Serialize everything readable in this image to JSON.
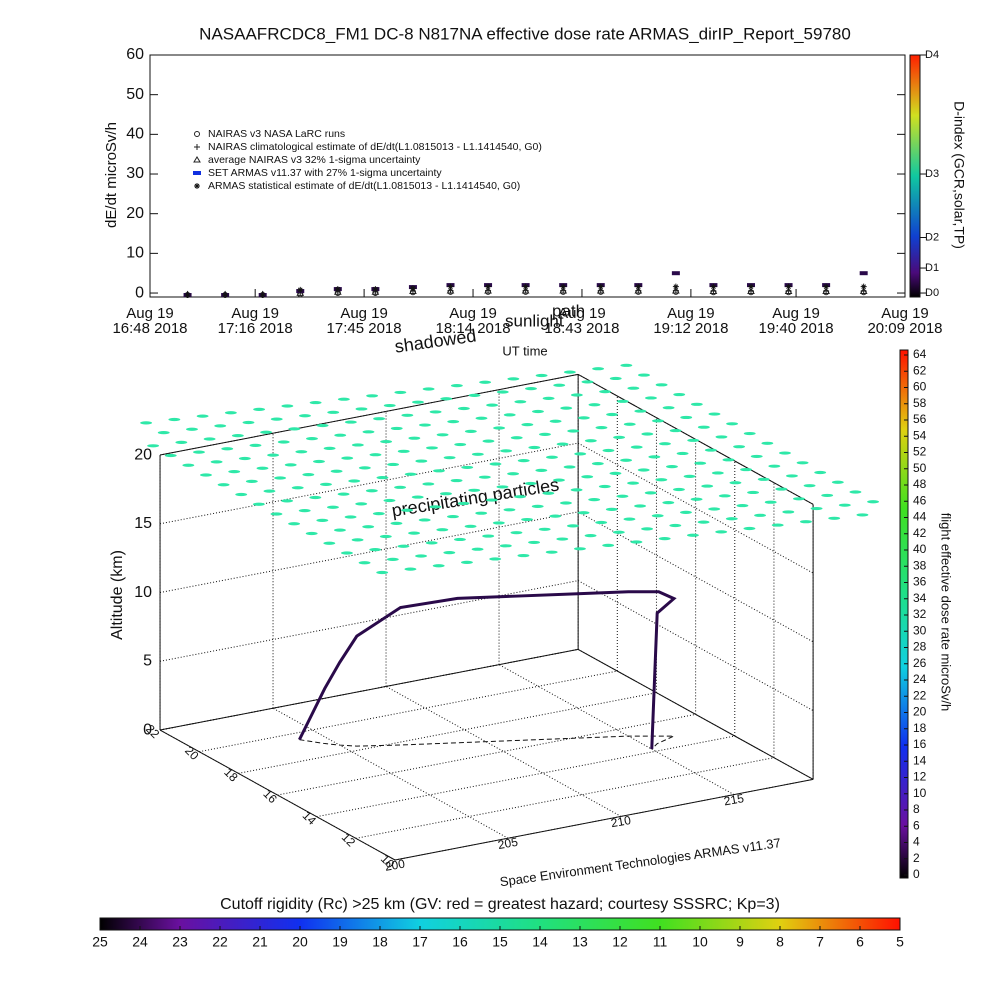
{
  "chart_data": [
    {
      "type": "line",
      "title": "NASAAFRCDC8_FM1 DC-8   N817NA effective dose rate ARMAS_dirIP_Report_59780",
      "ylabel": "dE/dt microSv/h",
      "xlabel": "UT time",
      "xlim": [
        0,
        201
      ],
      "xticks": [
        {
          "value": 0,
          "label": "Aug 19\n16:48 2018"
        },
        {
          "value": 28,
          "label": "Aug 19\n17:16 2018"
        },
        {
          "value": 57,
          "label": "Aug 19\n17:45 2018"
        },
        {
          "value": 86,
          "label": "Aug 19\n18:14 2018"
        },
        {
          "value": 115,
          "label": "Aug 19\n18:43 2018"
        },
        {
          "value": 144,
          "label": "Aug 19\n19:12 2018"
        },
        {
          "value": 172,
          "label": "Aug 19\n19:40 2018"
        },
        {
          "value": 201,
          "label": "Aug 19\n20:09 2018"
        }
      ],
      "ylim": [
        -1,
        60
      ],
      "yticks": [
        0,
        10,
        20,
        30,
        40,
        50,
        60
      ],
      "y2label": "D-index (GCR,solar,TP)",
      "y2lim": [
        -1,
        60
      ],
      "y2ticks": [
        {
          "value": 0,
          "label": "D0"
        },
        {
          "value": 6.3,
          "label": "D1"
        },
        {
          "value": 14,
          "label": "D2"
        },
        {
          "value": 30,
          "label": "D3"
        },
        {
          "value": 60,
          "label": "D4"
        }
      ],
      "x": [
        10,
        20,
        30,
        40,
        50,
        60,
        70,
        80,
        90,
        100,
        110,
        120,
        130,
        140,
        150,
        160,
        170,
        180,
        190
      ],
      "series": [
        {
          "name": "NAIRAS v3 NASA LaRC runs",
          "marker": "circle",
          "color": "#222222",
          "values": [
            -0.5,
            -0.5,
            -0.5,
            -0.3,
            0,
            0,
            0.2,
            0.3,
            0.3,
            0.3,
            0.3,
            0.3,
            0.3,
            0.3,
            0.2,
            0.2,
            0.2,
            0.2,
            0.2
          ]
        },
        {
          "name": "NAIRAS climatological estimate of dE/dt(L1.0815013 - L1.1414540, G0)",
          "marker": "plus",
          "color": "#222222",
          "values": [
            -0.3,
            -0.3,
            -0.3,
            0,
            0.3,
            0.3,
            0.5,
            0.6,
            0.6,
            0.6,
            0.6,
            0.6,
            0.6,
            0.6,
            0.5,
            0.5,
            0.5,
            0.5,
            0.5
          ]
        },
        {
          "name": "average NAIRAS v3 32% 1-sigma uncertainty",
          "marker": "triangle",
          "color": "#222222",
          "values": [
            -0.4,
            -0.4,
            -0.4,
            -0.1,
            0.2,
            0.2,
            0.4,
            0.5,
            0.5,
            0.5,
            0.5,
            0.5,
            0.5,
            0.5,
            0.4,
            0.4,
            0.4,
            0.4,
            0.4
          ]
        },
        {
          "name": "SET ARMAS v11.37 with 27% 1-sigma uncertainty",
          "marker": "square",
          "color": "#2a0a4a",
          "values": [
            -0.5,
            -0.5,
            -0.5,
            0.5,
            1,
            1,
            1.5,
            2,
            2,
            2,
            2,
            2,
            2,
            5,
            2,
            2,
            2,
            2,
            5
          ]
        },
        {
          "name": "ARMAS statistical estimate of dE/dt(L1.0815013 - L1.1414540, G0)",
          "marker": "asterisk",
          "color": "#111111",
          "values": [
            -0.5,
            -0.5,
            -0.5,
            0.8,
            1,
            1,
            1.2,
            1.6,
            1.6,
            1.6,
            1.6,
            1.6,
            1.6,
            1.6,
            1.6,
            1.6,
            1.6,
            1.6,
            1.6
          ]
        }
      ]
    },
    {
      "type": "scatter3d",
      "zlabel": "Altitude (km)",
      "zlim": [
        0,
        20
      ],
      "zticks": [
        0,
        5,
        10,
        15,
        20
      ],
      "ylim": [
        10,
        22
      ],
      "yticks": [
        10,
        12,
        14,
        16,
        18,
        20,
        22
      ],
      "xlim": [
        200,
        218.5
      ],
      "xticks": [
        200,
        205,
        210,
        215
      ],
      "annotations": [
        "shadowed",
        "sunlight",
        "path",
        "precipitating particles"
      ],
      "credit": "Space Environment Technologies ARMAS v11.37",
      "colorbar": {
        "label": "flight effective dose rate microSv/h",
        "lim": [
          0,
          64
        ],
        "ticks": [
          0,
          2,
          4,
          6,
          8,
          10,
          12,
          14,
          16,
          18,
          20,
          22,
          24,
          26,
          28,
          30,
          32,
          34,
          36,
          38,
          40,
          42,
          44,
          46,
          48,
          50,
          52,
          54,
          56,
          58,
          60,
          62,
          64
        ]
      },
      "track": {
        "x": [
          204,
          204.3,
          204.6,
          205,
          205.5,
          207,
          209,
          211,
          213,
          215,
          216,
          216.5,
          215.5,
          215
        ],
        "y": [
          19.5,
          19.2,
          18.9,
          18.6,
          18.3,
          17.8,
          17.2,
          16.6,
          16,
          15.4,
          15,
          14.8,
          14.5,
          14.2
        ],
        "z": [
          0,
          2,
          4,
          6,
          8,
          10,
          10.5,
          10.5,
          10.5,
          10.5,
          10.5,
          10,
          9.5,
          0
        ]
      }
    },
    {
      "type": "colorbar",
      "title": "Cutoff rigidity (Rc) >25 km (GV: red = greatest hazard; courtesy SSSRC; Kp=3)",
      "xlim": [
        25,
        5
      ],
      "xticks": [
        25,
        24,
        23,
        22,
        21,
        20,
        19,
        18,
        17,
        16,
        15,
        14,
        13,
        12,
        11,
        10,
        9,
        8,
        7,
        6,
        5
      ]
    }
  ]
}
